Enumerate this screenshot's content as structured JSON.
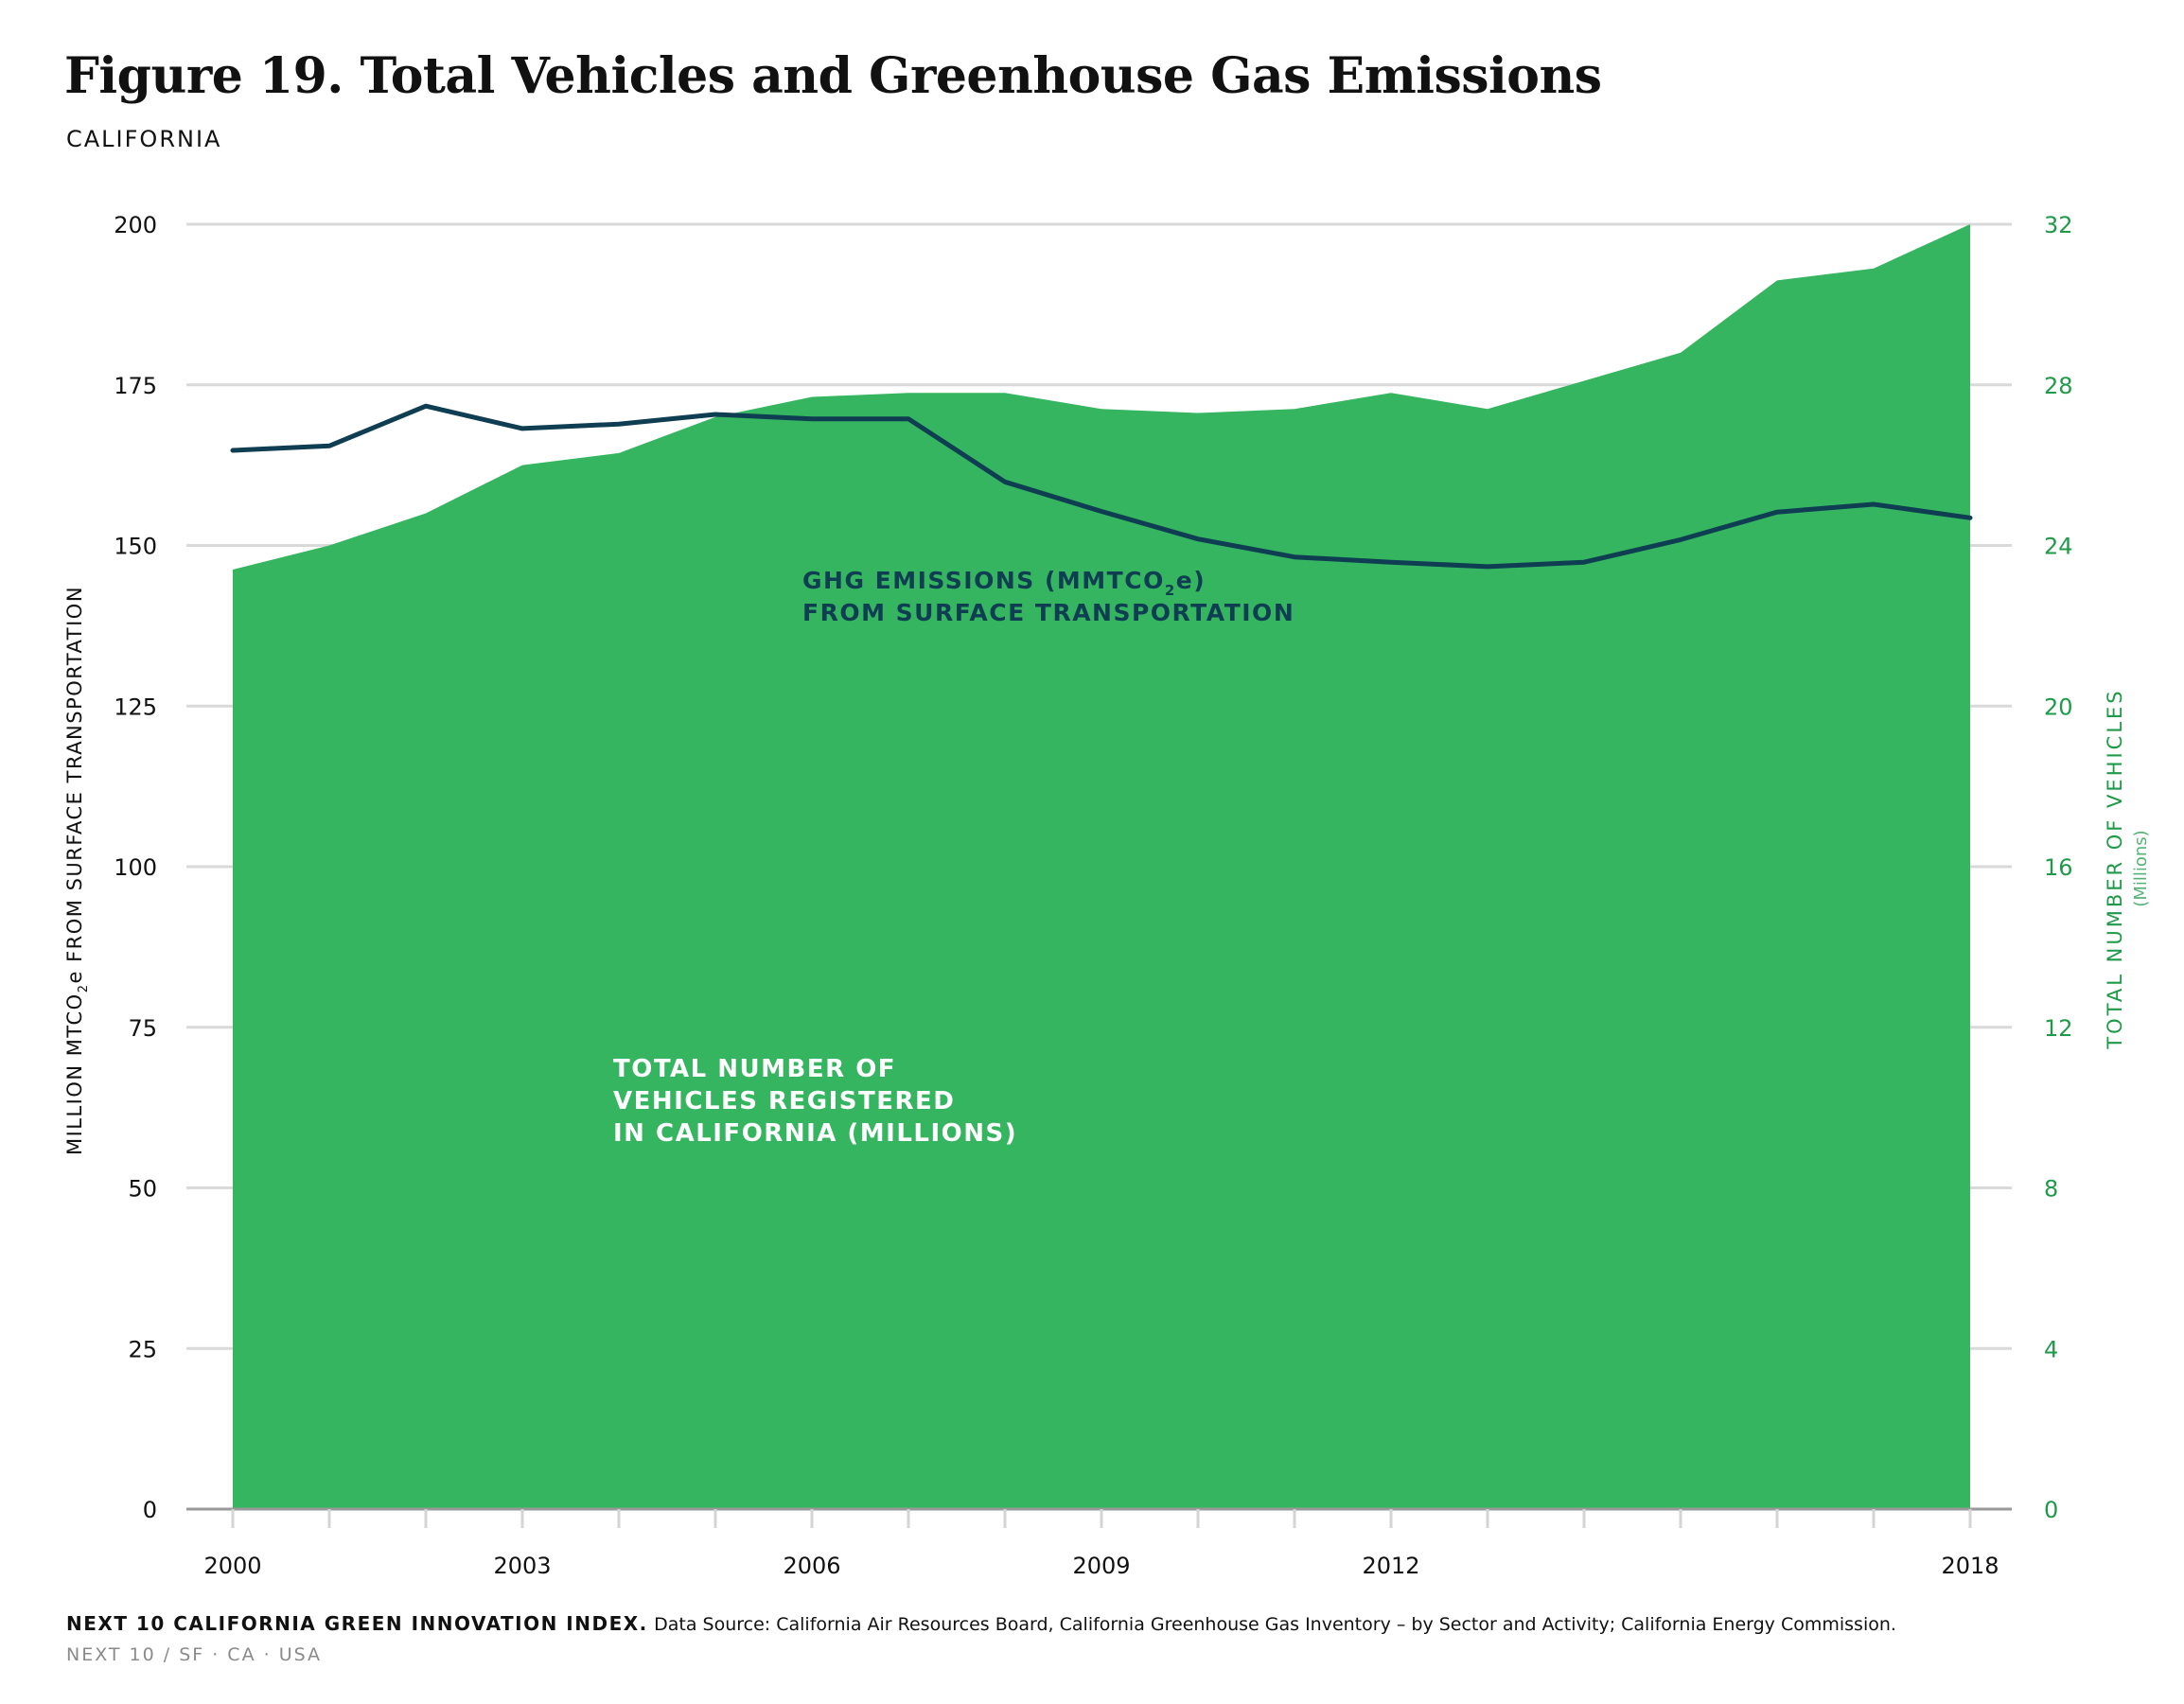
{
  "header": {
    "title": "Figure 19. Total Vehicles and Greenhouse Gas Emissions",
    "subtitle": "CALIFORNIA"
  },
  "colors": {
    "area": "#35b560",
    "line": "#0f3d52",
    "grid": "#d9d9d9",
    "right_axis": "#1f9a49",
    "baseline": "#999999"
  },
  "annotations": {
    "ghg_line1": "GHG EMISSIONS (MMTCO",
    "ghg_sub": "2",
    "ghg_line1_end": "e)",
    "ghg_line2": "FROM SURFACE TRANSPORTATION",
    "veh_line1": "TOTAL NUMBER OF",
    "veh_line2": "VEHICLES REGISTERED",
    "veh_line3": "IN CALIFORNIA (MILLIONS)"
  },
  "axes": {
    "left_label_pre": "MILLION MTCO",
    "left_label_sub": "2",
    "left_label_post": "e FROM SURFACE TRANSPORTATION",
    "right_label": "TOTAL NUMBER OF VEHICLES",
    "right_label_units": "(Millions)"
  },
  "footer": {
    "lead": "NEXT 10 CALIFORNIA GREEN INNOVATION INDEX.",
    "source": "Data Source: California Air Resources Board, California Greenhouse Gas Inventory – by Sector and Activity; California Energy Commission.",
    "org": "NEXT 10  /  SF · CA · USA"
  },
  "chart_data": {
    "type": "area",
    "x": [
      2000,
      2001,
      2002,
      2003,
      2004,
      2005,
      2006,
      2007,
      2008,
      2009,
      2010,
      2011,
      2012,
      2013,
      2014,
      2015,
      2016,
      2017,
      2018
    ],
    "series": [
      {
        "name": "TOTAL NUMBER OF VEHICLES REGISTERED IN CALIFORNIA (MILLIONS)",
        "axis": "right",
        "type": "area",
        "values": [
          23.4,
          24.0,
          24.8,
          26.0,
          26.3,
          27.2,
          27.7,
          27.8,
          27.8,
          27.4,
          27.3,
          27.4,
          27.8,
          27.4,
          28.1,
          28.8,
          30.6,
          30.9,
          32.0
        ]
      },
      {
        "name": "GHG EMISSIONS (MMTCO2e) FROM SURFACE TRANSPORTATION",
        "axis": "left",
        "type": "line",
        "values": [
          164.8,
          165.5,
          171.7,
          168.2,
          168.9,
          170.4,
          169.7,
          169.7,
          159.9,
          155.3,
          151.0,
          148.2,
          147.4,
          146.7,
          147.4,
          150.9,
          155.2,
          156.4,
          154.3
        ]
      }
    ],
    "x_ticks": [
      "2000",
      "2003",
      "2006",
      "2009",
      "2012",
      "2018"
    ],
    "y_left": {
      "ticks": [
        "0",
        "25",
        "50",
        "75",
        "100",
        "125",
        "150",
        "175",
        "200"
      ],
      "ylim": [
        0,
        200
      ]
    },
    "y_right": {
      "ticks": [
        "0",
        "4",
        "8",
        "12",
        "16",
        "20",
        "24",
        "28",
        "32"
      ],
      "ylim": [
        0,
        32
      ]
    },
    "grid": true
  }
}
